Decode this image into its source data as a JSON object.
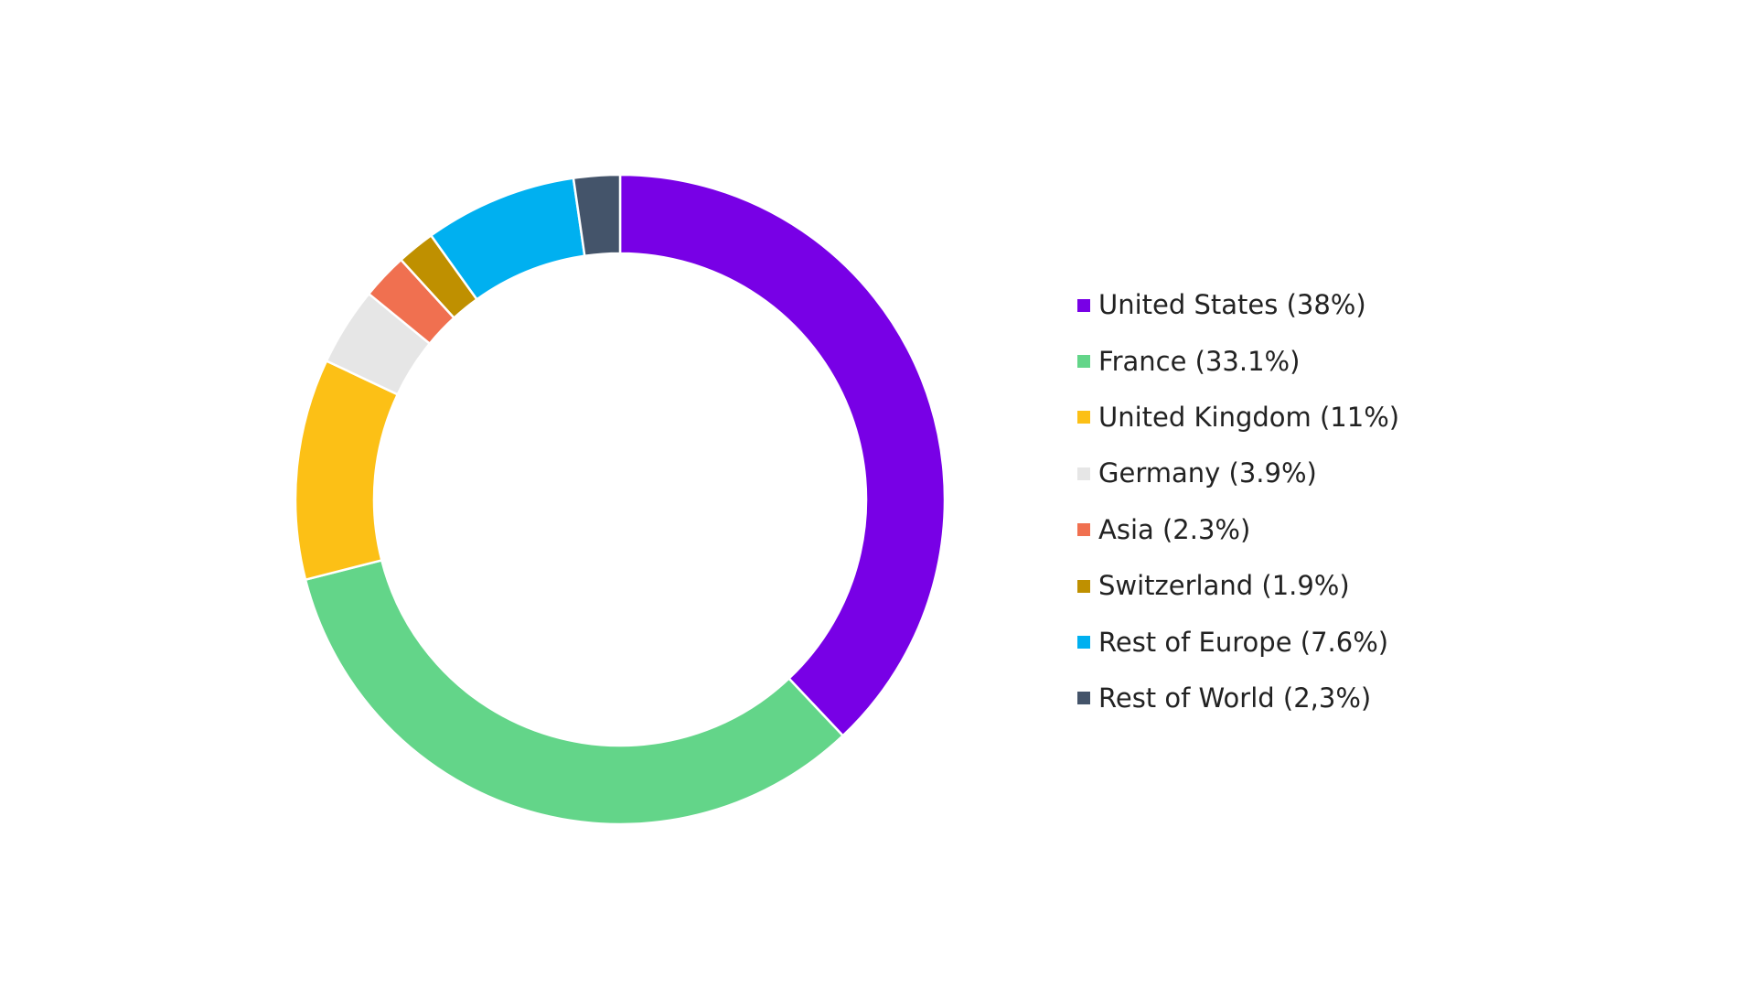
{
  "chart_data": {
    "type": "pie",
    "variant": "donut",
    "title": "",
    "legend_position": "right",
    "slices": [
      {
        "label": "United States (38%)",
        "value": 38.0,
        "color": "#7800E6"
      },
      {
        "label": "France (33.1%)",
        "value": 33.1,
        "color": "#63D589"
      },
      {
        "label": "United Kingdom (11%)",
        "value": 11.0,
        "color": "#FCC016"
      },
      {
        "label": "Germany (3.9%)",
        "value": 3.9,
        "color": "#E6E6E6"
      },
      {
        "label": "Asia (2.3%)",
        "value": 2.3,
        "color": "#F07050"
      },
      {
        "label": "Switzerland (1.9%)",
        "value": 1.9,
        "color": "#BF9000"
      },
      {
        "label": "Rest of Europe (7.6%)",
        "value": 7.6,
        "color": "#00B0F0"
      },
      {
        "label": "Rest of World (2,3%)",
        "value": 2.3,
        "color": "#44546A"
      }
    ]
  }
}
